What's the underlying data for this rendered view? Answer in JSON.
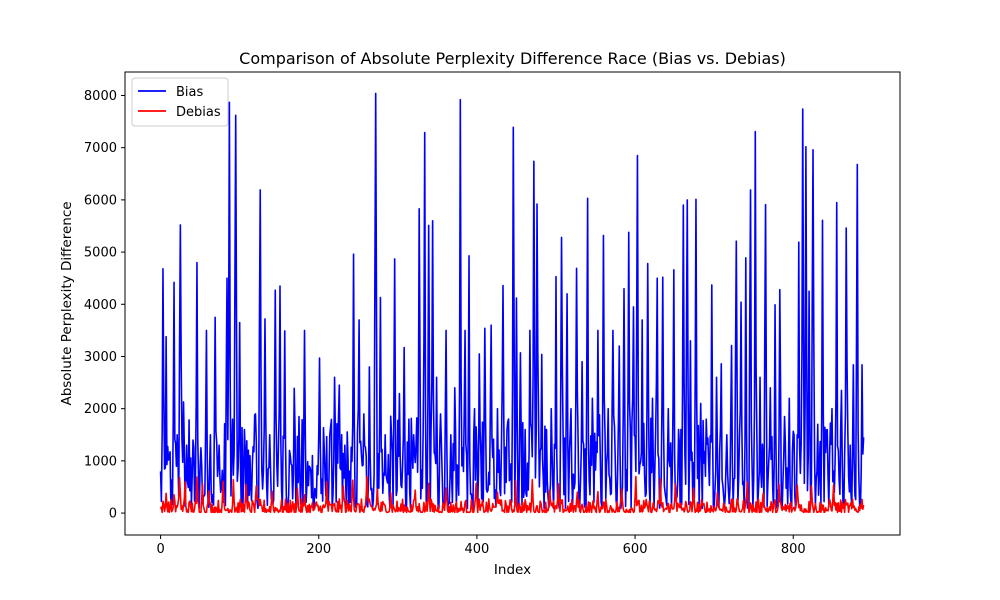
{
  "chart_data": {
    "type": "line",
    "title": "Comparison of Absolute Perplexity Difference Race (Bias vs. Debias)",
    "xlabel": "Index",
    "ylabel": "Absolute Perplexity Difference",
    "xlim": [
      -45,
      935
    ],
    "ylim": [
      -420,
      8450
    ],
    "xticks": [
      0,
      200,
      400,
      600,
      800
    ],
    "yticks": [
      0,
      1000,
      2000,
      3000,
      4000,
      5000,
      6000,
      7000,
      8000
    ],
    "grid": false,
    "legend_position": "top-left",
    "n_points": 890,
    "series": [
      {
        "name": "Bias",
        "color": "#0000ff",
        "peaks": [
          [
            3,
            4680
          ],
          [
            7,
            3380
          ],
          [
            11,
            1100
          ],
          [
            17,
            4420
          ],
          [
            21,
            1500
          ],
          [
            25,
            5520
          ],
          [
            29,
            2130
          ],
          [
            33,
            1300
          ],
          [
            41,
            1400
          ],
          [
            46,
            4800
          ],
          [
            51,
            1250
          ],
          [
            58,
            3500
          ],
          [
            63,
            1500
          ],
          [
            69,
            3750
          ],
          [
            74,
            1300
          ],
          [
            84,
            4500
          ],
          [
            87,
            7870
          ],
          [
            91,
            1800
          ],
          [
            95,
            7620
          ],
          [
            100,
            3650
          ],
          [
            106,
            1600
          ],
          [
            113,
            1100
          ],
          [
            120,
            1900
          ],
          [
            126,
            6190
          ],
          [
            132,
            3720
          ],
          [
            138,
            1500
          ],
          [
            145,
            4270
          ],
          [
            151,
            4350
          ],
          [
            157,
            3490
          ],
          [
            163,
            1200
          ],
          [
            169,
            2390
          ],
          [
            175,
            1850
          ],
          [
            182,
            3500
          ],
          [
            190,
            800
          ],
          [
            201,
            2970
          ],
          [
            207,
            1200
          ],
          [
            214,
            1500
          ],
          [
            220,
            2600
          ],
          [
            226,
            2450
          ],
          [
            233,
            1300
          ],
          [
            244,
            4960
          ],
          [
            251,
            3700
          ],
          [
            257,
            1900
          ],
          [
            264,
            2800
          ],
          [
            272,
            8040
          ],
          [
            278,
            4130
          ],
          [
            284,
            1500
          ],
          [
            292,
            1500
          ],
          [
            296,
            4870
          ],
          [
            302,
            2290
          ],
          [
            308,
            3170
          ],
          [
            314,
            1800
          ],
          [
            320,
            1500
          ],
          [
            327,
            5830
          ],
          [
            334,
            7290
          ],
          [
            339,
            5510
          ],
          [
            344,
            5600
          ],
          [
            349,
            2600
          ],
          [
            354,
            1900
          ],
          [
            361,
            3500
          ],
          [
            367,
            1500
          ],
          [
            372,
            2400
          ],
          [
            379,
            7920
          ],
          [
            385,
            3500
          ],
          [
            390,
            4930
          ],
          [
            397,
            2000
          ],
          [
            403,
            3050
          ],
          [
            410,
            3540
          ],
          [
            418,
            3600
          ],
          [
            426,
            2000
          ],
          [
            433,
            4360
          ],
          [
            440,
            1800
          ],
          [
            446,
            7390
          ],
          [
            450,
            4120
          ],
          [
            455,
            3070
          ],
          [
            461,
            1600
          ],
          [
            467,
            3500
          ],
          [
            472,
            6740
          ],
          [
            476,
            5920
          ],
          [
            482,
            3040
          ],
          [
            488,
            1600
          ],
          [
            494,
            2000
          ],
          [
            500,
            4530
          ],
          [
            507,
            5280
          ],
          [
            514,
            4200
          ],
          [
            519,
            2000
          ],
          [
            526,
            4690
          ],
          [
            533,
            2900
          ],
          [
            540,
            6030
          ],
          [
            546,
            2200
          ],
          [
            553,
            3500
          ],
          [
            560,
            5320
          ],
          [
            566,
            2000
          ],
          [
            572,
            3500
          ],
          [
            580,
            3200
          ],
          [
            586,
            4300
          ],
          [
            592,
            5380
          ],
          [
            598,
            3950
          ],
          [
            603,
            6850
          ],
          [
            609,
            3700
          ],
          [
            616,
            4780
          ],
          [
            622,
            2200
          ],
          [
            628,
            4500
          ],
          [
            635,
            4520
          ],
          [
            642,
            2000
          ],
          [
            649,
            4660
          ],
          [
            655,
            1600
          ],
          [
            661,
            5900
          ],
          [
            666,
            6000
          ],
          [
            670,
            3300
          ],
          [
            677,
            6010
          ],
          [
            683,
            2100
          ],
          [
            690,
            1800
          ],
          [
            697,
            4370
          ],
          [
            703,
            2600
          ],
          [
            709,
            2860
          ],
          [
            716,
            1500
          ],
          [
            722,
            3210
          ],
          [
            728,
            5210
          ],
          [
            734,
            4040
          ],
          [
            740,
            4890
          ],
          [
            746,
            6190
          ],
          [
            752,
            7310
          ],
          [
            758,
            2600
          ],
          [
            765,
            5910
          ],
          [
            771,
            2400
          ],
          [
            777,
            3990
          ],
          [
            783,
            4280
          ],
          [
            789,
            1850
          ],
          [
            795,
            2200
          ],
          [
            801,
            1500
          ],
          [
            807,
            5190
          ],
          [
            812,
            7740
          ],
          [
            816,
            7020
          ],
          [
            820,
            4250
          ],
          [
            825,
            6960
          ],
          [
            831,
            1700
          ],
          [
            837,
            5610
          ],
          [
            843,
            1600
          ],
          [
            849,
            2000
          ],
          [
            855,
            5950
          ],
          [
            861,
            2350
          ],
          [
            867,
            5460
          ],
          [
            872,
            1300
          ],
          [
            876,
            2840
          ],
          [
            881,
            6680
          ],
          [
            887,
            2840
          ]
        ],
        "base_level": 600
      },
      {
        "name": "Debias",
        "color": "#ff0000",
        "peaks": [
          [
            7,
            380
          ],
          [
            17,
            350
          ],
          [
            24,
            680
          ],
          [
            31,
            600
          ],
          [
            46,
            690
          ],
          [
            53,
            560
          ],
          [
            61,
            420
          ],
          [
            79,
            610
          ],
          [
            92,
            640
          ],
          [
            108,
            550
          ],
          [
            121,
            520
          ],
          [
            141,
            420
          ],
          [
            173,
            480
          ],
          [
            182,
            350
          ],
          [
            210,
            600
          ],
          [
            231,
            520
          ],
          [
            243,
            630
          ],
          [
            261,
            700
          ],
          [
            274,
            460
          ],
          [
            291,
            390
          ],
          [
            322,
            440
          ],
          [
            339,
            570
          ],
          [
            361,
            480
          ],
          [
            399,
            570
          ],
          [
            426,
            400
          ],
          [
            449,
            620
          ],
          [
            470,
            640
          ],
          [
            492,
            440
          ],
          [
            503,
            560
          ],
          [
            527,
            400
          ],
          [
            553,
            410
          ],
          [
            583,
            460
          ],
          [
            601,
            700
          ],
          [
            632,
            660
          ],
          [
            651,
            560
          ],
          [
            674,
            480
          ],
          [
            704,
            390
          ],
          [
            742,
            600
          ],
          [
            762,
            380
          ],
          [
            782,
            560
          ],
          [
            805,
            540
          ],
          [
            823,
            520
          ],
          [
            851,
            540
          ],
          [
            887,
            260
          ]
        ],
        "base_level": 90
      }
    ]
  }
}
